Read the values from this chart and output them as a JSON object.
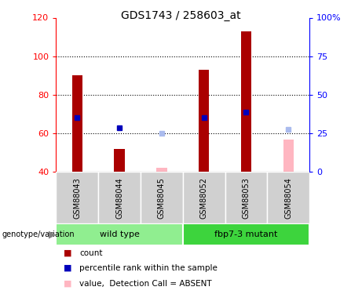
{
  "title": "GDS1743 / 258603_at",
  "samples": [
    "GSM88043",
    "GSM88044",
    "GSM88045",
    "GSM88052",
    "GSM88053",
    "GSM88054"
  ],
  "count_values": [
    90,
    52,
    null,
    93,
    113,
    null
  ],
  "count_absent": [
    null,
    null,
    42,
    null,
    null,
    57
  ],
  "rank_pct_present": [
    null,
    null,
    null,
    null,
    null,
    null
  ],
  "rank_pct_absent": [
    null,
    null,
    null,
    null,
    null,
    null
  ],
  "rank_left_present": [
    68,
    63,
    null,
    68,
    71,
    null
  ],
  "rank_left_absent": [
    null,
    null,
    60,
    null,
    null,
    62
  ],
  "ylim_left": [
    40,
    120
  ],
  "ylim_right": [
    0,
    100
  ],
  "yticks_left": [
    40,
    60,
    80,
    100,
    120
  ],
  "yticks_right": [
    0,
    25,
    50,
    75,
    100
  ],
  "ytick_labels_right": [
    "0",
    "25",
    "50",
    "75",
    "100%"
  ],
  "groups": [
    {
      "label": "wild type",
      "samples": [
        0,
        1,
        2
      ],
      "color": "#90EE90"
    },
    {
      "label": "fbp7-3 mutant",
      "samples": [
        3,
        4,
        5
      ],
      "color": "#3DD43D"
    }
  ],
  "bar_color_present": "#AA0000",
  "bar_color_absent": "#FFB6C1",
  "rank_color_present": "#0000BB",
  "rank_color_absent": "#AABBEE",
  "bar_width": 0.25,
  "marker_size": 5
}
